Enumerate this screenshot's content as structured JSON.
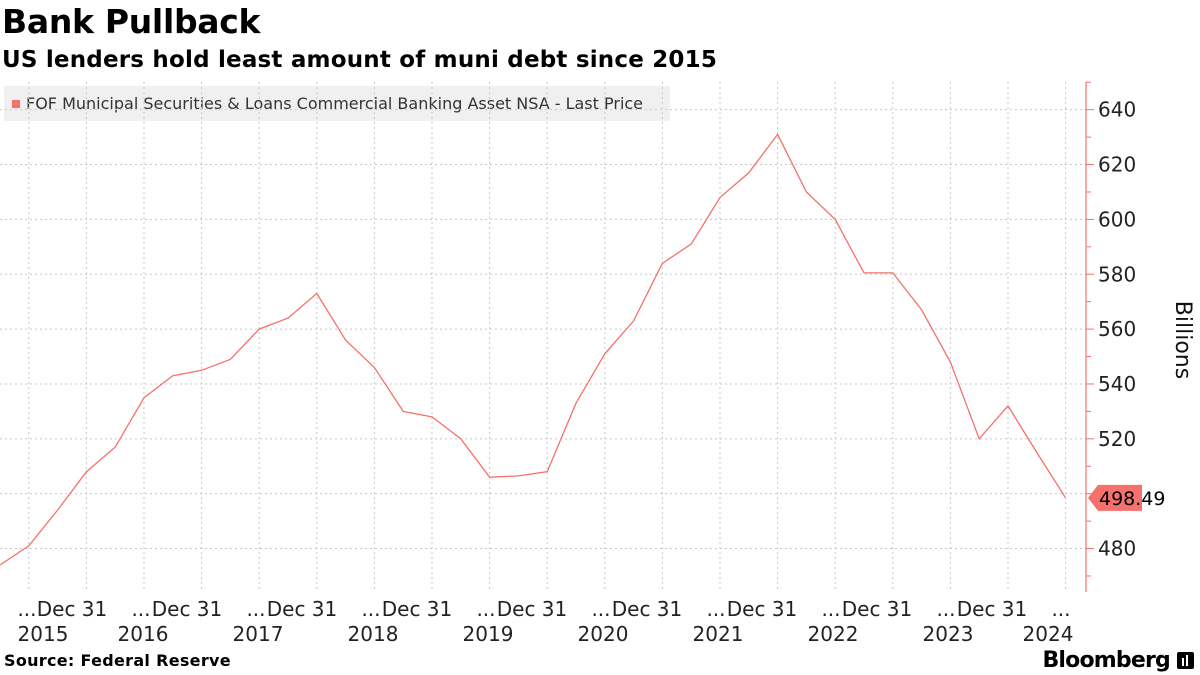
{
  "header": {
    "title": "Bank Pullback",
    "subtitle": "US lenders hold least amount of muni debt since 2015"
  },
  "legend": {
    "label": "FOF Municipal Securities & Loans Commercial Banking Asset NSA - Last Price",
    "swatch_color": "#f4726b"
  },
  "footer": {
    "source": "Source: Federal Reserve",
    "brand": "Bloomberg",
    "brand_icon": "bloomberg-terminal-icon"
  },
  "chart_data": {
    "type": "line",
    "title": "Bank Pullback",
    "subtitle": "US lenders hold least amount of muni debt since 2015",
    "ylabel": "Billions",
    "y_axis_side": "right",
    "ylim": [
      460,
      648
    ],
    "yticks": [
      480,
      500,
      520,
      540,
      560,
      580,
      600,
      620,
      640
    ],
    "ytick_labels": [
      "480",
      "",
      "520",
      "540",
      "560",
      "580",
      "600",
      "620",
      "640"
    ],
    "x_tick_top": [
      "...",
      "Dec 31",
      "...",
      "Dec 31",
      "...",
      "Dec 31",
      "...",
      "Dec 31",
      "...",
      "Dec 31",
      "...",
      "Dec 31",
      "...",
      "Dec 31",
      "...",
      "Dec 31",
      "...",
      "Dec 31",
      "..."
    ],
    "x_tick_years": [
      "2015",
      "2016",
      "2017",
      "2018",
      "2019",
      "2020",
      "2021",
      "2022",
      "2023",
      "2024"
    ],
    "grid": true,
    "line_color": "#f4726b",
    "last_value_label": "498.49",
    "series": [
      {
        "name": "FOF Municipal Securities & Loans Commercial Banking Asset NSA - Last Price",
        "x": [
          "2015-Q1",
          "2015-Q2",
          "2015-Q3",
          "2015-Q4",
          "2016-Q1",
          "2016-Q2",
          "2016-Q3",
          "2016-Q4",
          "2017-Q1",
          "2017-Q2",
          "2017-Q3",
          "2017-Q4",
          "2018-Q1",
          "2018-Q2",
          "2018-Q3",
          "2018-Q4",
          "2019-Q1",
          "2019-Q2",
          "2019-Q3",
          "2019-Q4",
          "2020-Q1",
          "2020-Q2",
          "2020-Q3",
          "2020-Q4",
          "2021-Q1",
          "2021-Q2",
          "2021-Q3",
          "2021-Q4",
          "2022-Q1",
          "2022-Q2",
          "2022-Q3",
          "2022-Q4",
          "2023-Q1",
          "2023-Q2",
          "2023-Q3",
          "2023-Q4",
          "2024-Q1",
          "2024-Q2"
        ],
        "values": [
          474,
          481,
          494,
          508,
          517,
          535,
          543,
          545,
          549,
          560,
          564,
          573,
          556,
          546,
          530,
          528,
          520,
          506,
          506.5,
          508,
          533,
          551,
          563,
          584,
          591,
          608,
          617,
          631,
          610,
          600,
          580.5,
          580.5,
          567,
          548,
          520,
          532,
          515,
          498.49
        ]
      }
    ]
  }
}
